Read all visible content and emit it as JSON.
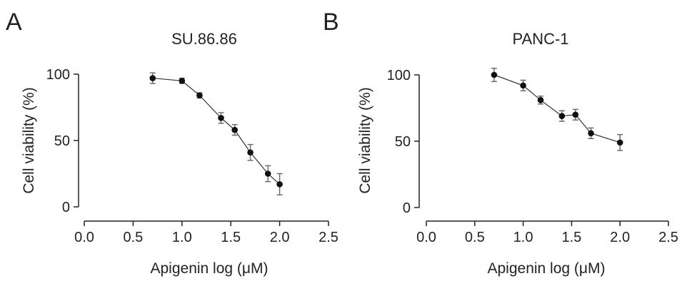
{
  "chart_data": [
    {
      "type": "line",
      "panel": "A",
      "title": "SU.86.86",
      "xlabel": "Apigenin log (μM)",
      "ylabel": "Cell viability (%)",
      "xlim": [
        0.0,
        2.5
      ],
      "ylim": [
        0,
        100
      ],
      "xticks": [
        "0.0",
        "0.5",
        "1.0",
        "1.5",
        "2.0",
        "2.5"
      ],
      "yticks": [
        "0",
        "50",
        "100"
      ],
      "grid": false,
      "series": [
        {
          "x": [
            0.7,
            1.0,
            1.18,
            1.4,
            1.54,
            1.7,
            1.88,
            2.0
          ],
          "values": [
            97,
            95,
            84,
            67,
            58,
            41,
            25,
            17
          ],
          "error": [
            4,
            2,
            2,
            4,
            4,
            6,
            6,
            8
          ]
        }
      ]
    },
    {
      "type": "line",
      "panel": "B",
      "title": "PANC-1",
      "xlabel": "Apigenin log (μM)",
      "ylabel": "Cell viability (%)",
      "xlim": [
        0.0,
        2.5
      ],
      "ylim": [
        0,
        100
      ],
      "xticks": [
        "0.0",
        "0.5",
        "1.0",
        "1.5",
        "2.0",
        "2.5"
      ],
      "yticks": [
        "0",
        "50",
        "100"
      ],
      "grid": false,
      "series": [
        {
          "x": [
            0.7,
            1.0,
            1.18,
            1.4,
            1.54,
            1.7,
            2.0
          ],
          "values": [
            100,
            92,
            81,
            69,
            70,
            56,
            49
          ],
          "error": [
            5,
            4,
            3,
            4,
            4,
            4,
            6
          ]
        }
      ]
    }
  ]
}
